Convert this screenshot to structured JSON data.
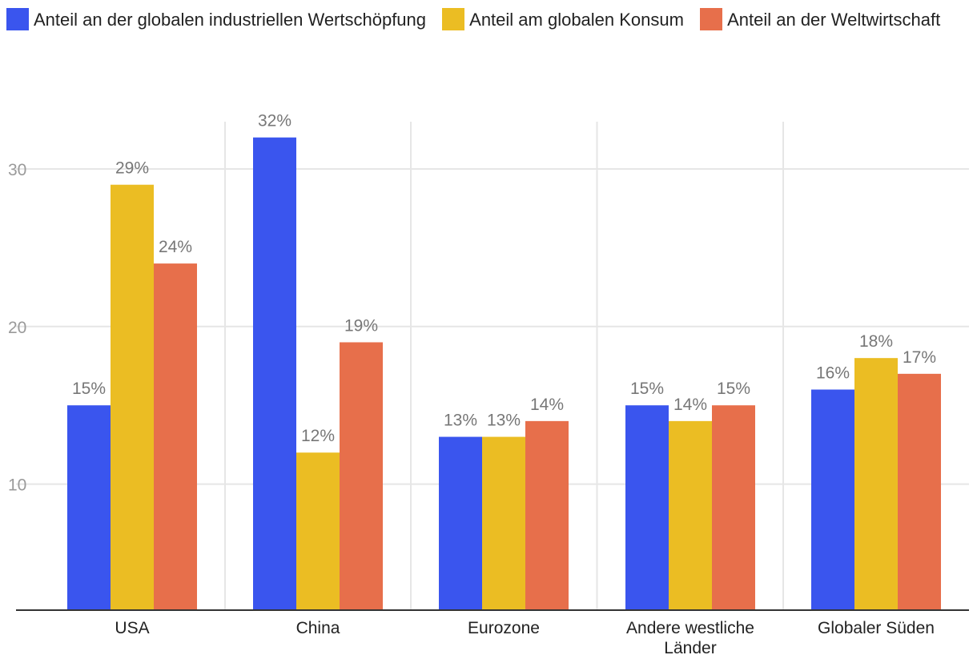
{
  "chart_data": {
    "type": "bar",
    "categories": [
      "USA",
      "China",
      "Eurozone",
      "Andere westliche Länder",
      "Globaler Süden"
    ],
    "category_lines": [
      [
        "USA"
      ],
      [
        "China"
      ],
      [
        "Eurozone"
      ],
      [
        "Andere westliche",
        "Länder"
      ],
      [
        "Globaler Süden"
      ]
    ],
    "series": [
      {
        "name": "Anteil an der globalen industriellen Wertschöpfung",
        "color": "#3a55ee",
        "values": [
          15,
          32,
          13,
          15,
          16
        ],
        "labels": [
          "15%",
          "32%",
          "13%",
          "15%",
          "16%"
        ]
      },
      {
        "name": "Anteil am globalen Konsum",
        "color": "#ebbd23",
        "values": [
          29,
          12,
          13,
          14,
          18
        ],
        "labels": [
          "29%",
          "12%",
          "13%",
          "14%",
          "18%"
        ]
      },
      {
        "name": "Anteil an der Weltwirtschaft",
        "color": "#e76f4b",
        "values": [
          24,
          19,
          14,
          15,
          17
        ],
        "labels": [
          "24%",
          "19%",
          "14%",
          "15%",
          "17%"
        ]
      }
    ],
    "yticks": [
      "10",
      "20",
      "30"
    ],
    "ylim": [
      2,
      33
    ],
    "legend_position": "top",
    "grid": true,
    "title": "",
    "xlabel": "",
    "ylabel": ""
  }
}
